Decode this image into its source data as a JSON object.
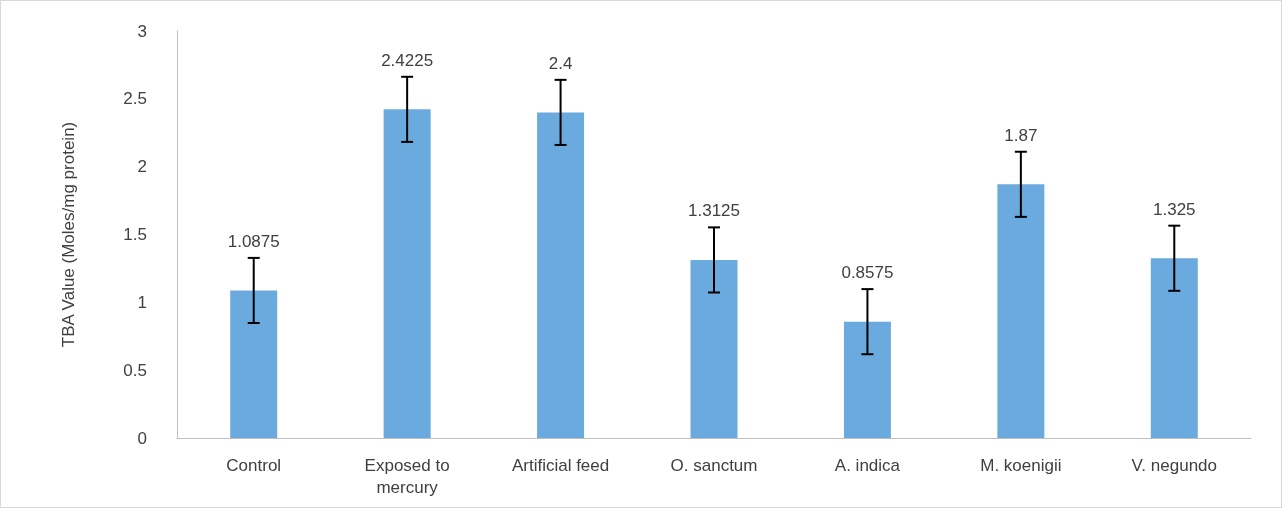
{
  "chart_data": {
    "type": "bar",
    "ylabel": "TBA Value (Moles/mg protein)",
    "categories": [
      "Control",
      "Exposed to\nmercury",
      "Artificial feed",
      "O. sanctum",
      "A. indica",
      "M. koenigii",
      "V. negundo"
    ],
    "values": [
      1.0875,
      2.4225,
      2.4,
      1.3125,
      0.8575,
      1.87,
      1.325
    ],
    "errors": [
      0.24,
      0.24,
      0.24,
      0.24,
      0.24,
      0.24,
      0.24
    ],
    "color": "#6aaade",
    "ylim": [
      0,
      3
    ],
    "yticks": [
      0,
      0.5,
      1,
      1.5,
      2,
      2.5,
      3
    ],
    "grid": false,
    "data_labels": true
  }
}
